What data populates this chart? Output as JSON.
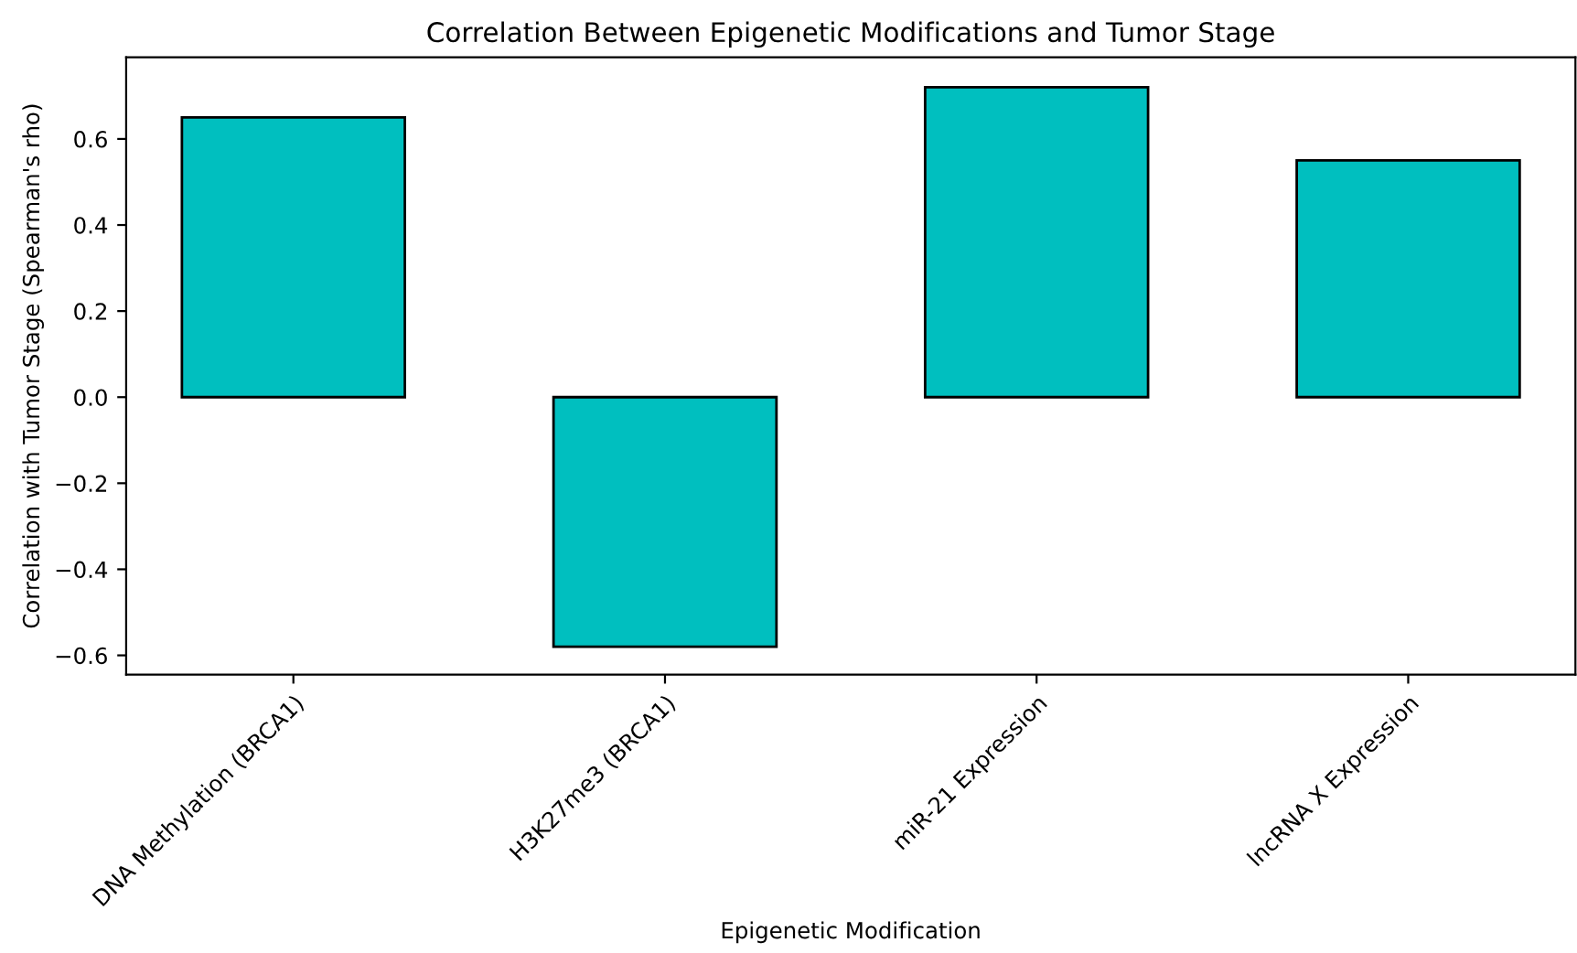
{
  "chart_data": {
    "type": "bar",
    "title": "Correlation Between Epigenetic Modifications and Tumor Stage",
    "xlabel": "Epigenetic Modification",
    "ylabel": "Correlation with Tumor Stage (Spearman's rho)",
    "categories": [
      "DNA Methylation (BRCA1)",
      "H3K27me3 (BRCA1)",
      "miR-21 Expression",
      "lncRNA X Expression"
    ],
    "values": [
      0.65,
      -0.58,
      0.72,
      0.55
    ],
    "color": "#00bfbf",
    "ylim": [
      -0.645,
      0.79
    ],
    "yticks": [
      {
        "value": -0.6,
        "label": "−0.6"
      },
      {
        "value": -0.4,
        "label": "−0.4"
      },
      {
        "value": -0.2,
        "label": "−0.2"
      },
      {
        "value": 0.0,
        "label": "0.0"
      },
      {
        "value": 0.2,
        "label": "0.2"
      },
      {
        "value": 0.4,
        "label": "0.4"
      },
      {
        "value": 0.6,
        "label": "0.6"
      }
    ],
    "grid": false
  }
}
